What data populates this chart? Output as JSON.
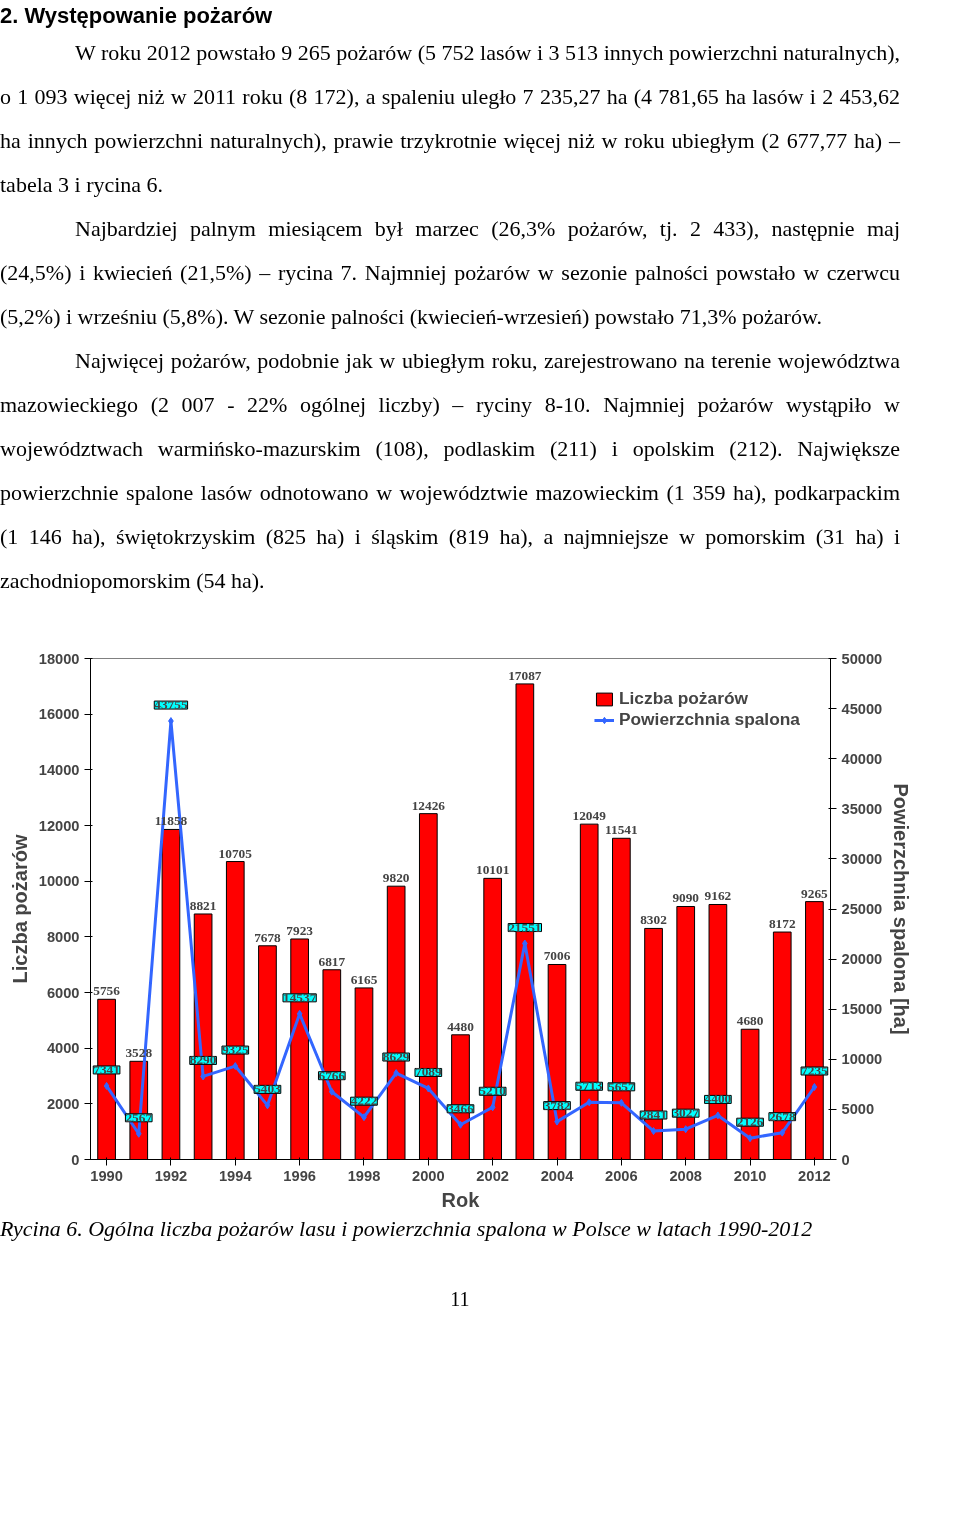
{
  "chart_data": {
    "type": "bar",
    "title": "2. Występowanie pożarów",
    "xlabel": "Rok",
    "ylabel": "Liczba pożarów",
    "y2label": "Powierzchnia spalona [ha]",
    "annotations": [
      "W roku 2012 powstało 9 265 pożarów (5 752 lasów i 3 513 innych powierzchni naturalnych), o 1 093 więcej niż w 2011 roku (8 172), a spaleniu uległo 7 235,27 ha (4 781,65 ha lasów i 2 453,62 ha innych powierzchni naturalnych), prawie trzykrotnie więcej niż w roku ubiegłym (2 677,77 ha) – tabela 3 i rycina 6.",
      "Najbardziej palnym miesiącem był marzec (26,3% pożarów, tj. 2 433), następnie maj (24,5%) i kwiecień (21,5%) – rycina 7. Najmniej pożarów w sezonie palności powstało w czerwcu (5,2%) i wrześniu (5,8%). W sezonie palności (kwiecień-wrzesień) powstało 71,3% pożarów.",
      "Najwięcej pożarów, podobnie jak w ubiegłym roku, zarejestrowano na terenie województwa mazowieckiego (2 007 - 22% ogólnej liczby) – ryciny 8-10. Najmniej pożarów wystąpiło w województwach warmińsko-mazurskim (108), podlaskim (211) i opolskim (212). Największe powierzchnie spalone lasów odnotowano w województwie mazowieckim (1 359 ha), podkarpackim (1 146 ha), świętokrzyskim (825 ha) i śląskim (819 ha), a najmniejsze w pomorskim (31 ha) i zachodniopomorskim (54 ha).",
      "Rycina 6. Ogólna liczba pożarów lasu i powierzchnia spalona w Polsce w latach 1990-2012",
      "11"
    ],
    "x": [
      1990,
      1991,
      1992,
      1993,
      1994,
      1995,
      1996,
      1997,
      1998,
      1999,
      2000,
      2001,
      2002,
      2003,
      2004,
      2005,
      2006,
      2007,
      2008,
      2009,
      2010,
      2011,
      2012
    ],
    "xlim": [
      1989.5,
      2012.5
    ],
    "xticks": [
      1990,
      1992,
      1994,
      1996,
      1998,
      2000,
      2002,
      2004,
      2006,
      2008,
      2010,
      2012
    ],
    "ylim": [
      0,
      18000
    ],
    "yticks": [
      0,
      2000,
      4000,
      6000,
      8000,
      10000,
      12000,
      14000,
      16000,
      18000
    ],
    "y2lim": [
      0,
      50000
    ],
    "y2ticks": [
      0,
      5000,
      10000,
      15000,
      20000,
      25000,
      30000,
      35000,
      40000,
      45000,
      50000
    ],
    "series": [
      {
        "name": "Liczba pożarów",
        "color": "#ff0000",
        "values": [
          5756,
          3528,
          11858,
          8821,
          10705,
          7678,
          7923,
          6817,
          6165,
          9820,
          12426,
          4480,
          10101,
          17087,
          7006,
          12049,
          11541,
          8302,
          9090,
          9162,
          4680,
          8172,
          9265
        ]
      },
      {
        "name": "Powierzchnia spalona",
        "type": "line",
        "axis": "y2",
        "color": "#3366ff",
        "marker": "diamond",
        "values": [
          7341,
          2567,
          43755,
          8290,
          9325,
          5403,
          14537,
          6766,
          4222,
          8629,
          7089,
          3466,
          5210,
          21551,
          3782,
          5713,
          5657,
          2841,
          3027,
          4400,
          2126,
          2678,
          7235
        ]
      }
    ],
    "data_labels": true,
    "legend": "top right",
    "grid": false
  }
}
